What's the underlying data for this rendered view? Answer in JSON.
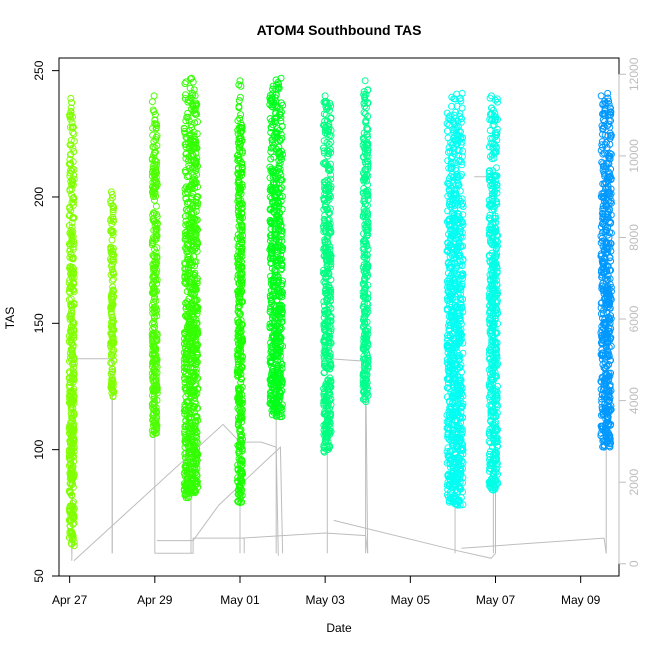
{
  "chart_data": {
    "type": "scatter",
    "title": "ATOM4 Southbound TAS",
    "xlabel": "Date",
    "ylabel": "TAS",
    "x_ticks": [
      "Apr 27",
      "Apr 29",
      "May 01",
      "May 03",
      "May 05",
      "May 07",
      "May 09"
    ],
    "x_range_days": [
      26.75,
      39.9
    ],
    "x_tick_days": [
      27,
      29,
      31,
      33,
      35,
      37,
      39
    ],
    "y_ticks": [
      50,
      100,
      150,
      200,
      250
    ],
    "ylim": [
      50,
      255
    ],
    "y2_ticks": [
      0,
      2000,
      4000,
      6000,
      8000,
      10000,
      12000
    ],
    "y2lim": [
      -300,
      12400
    ],
    "grid": false,
    "legend": "none",
    "point_series": [
      {
        "day": 27.05,
        "ymin": 62,
        "ymax": 239,
        "color": "#80ff00",
        "width": 0.12
      },
      {
        "day": 28.0,
        "ymin": 121,
        "ymax": 202,
        "color": "#80ff00",
        "width": 0.08
      },
      {
        "day": 29.0,
        "ymin": 106,
        "ymax": 240,
        "color": "#4dff00",
        "width": 0.12
      },
      {
        "day": 29.85,
        "ymin": 81,
        "ymax": 247,
        "color": "#33ff00",
        "width": 0.32
      },
      {
        "day": 31.0,
        "ymin": 79,
        "ymax": 246,
        "color": "#1aff00",
        "width": 0.12
      },
      {
        "day": 31.85,
        "ymin": 113,
        "ymax": 247,
        "color": "#00ff1a",
        "width": 0.3
      },
      {
        "day": 33.05,
        "ymin": 99,
        "ymax": 240,
        "color": "#00ff80",
        "width": 0.18
      },
      {
        "day": 33.95,
        "ymin": 119,
        "ymax": 246,
        "color": "#00ff8c",
        "width": 0.12
      },
      {
        "day": 36.05,
        "ymin": 78,
        "ymax": 241,
        "color": "#00fff2",
        "width": 0.38
      },
      {
        "day": 36.95,
        "ymin": 84,
        "ymax": 240,
        "color": "#00ffe6",
        "width": 0.2
      },
      {
        "day": 39.6,
        "ymin": 101,
        "ymax": 241,
        "color": "#0099ff",
        "width": 0.25
      }
    ],
    "gray_lines": [
      [
        [
          27.05,
          56
        ],
        [
          27.1,
          136
        ],
        [
          28.0,
          136
        ],
        [
          28.0,
          59
        ],
        [
          28.0,
          121
        ]
      ],
      [
        [
          27.1,
          56
        ],
        [
          30.6,
          110
        ],
        [
          31.0,
          103
        ],
        [
          31.5,
          103
        ],
        [
          31.85,
          101
        ],
        [
          31.9,
          58
        ]
      ],
      [
        [
          29.05,
          64
        ],
        [
          29.9,
          64
        ],
        [
          30.5,
          78
        ],
        [
          31.95,
          101
        ],
        [
          32.0,
          59
        ]
      ],
      [
        [
          29.0,
          59
        ],
        [
          29.9,
          59
        ],
        [
          29.9,
          65
        ],
        [
          31.1,
          65
        ],
        [
          31.1,
          59
        ]
      ],
      [
        [
          31.05,
          65
        ],
        [
          33.0,
          67
        ],
        [
          33.95,
          66
        ],
        [
          34.0,
          59
        ]
      ],
      [
        [
          33.1,
          136
        ],
        [
          33.95,
          135
        ],
        [
          34.0,
          59
        ]
      ],
      [
        [
          33.2,
          72
        ],
        [
          36.1,
          60
        ],
        [
          36.9,
          57
        ],
        [
          37.0,
          59
        ]
      ],
      [
        [
          36.2,
          61
        ],
        [
          39.55,
          65
        ],
        [
          39.6,
          59
        ]
      ],
      [
        [
          36.5,
          208
        ],
        [
          37.0,
          208
        ],
        [
          37.0,
          59
        ]
      ]
    ]
  }
}
